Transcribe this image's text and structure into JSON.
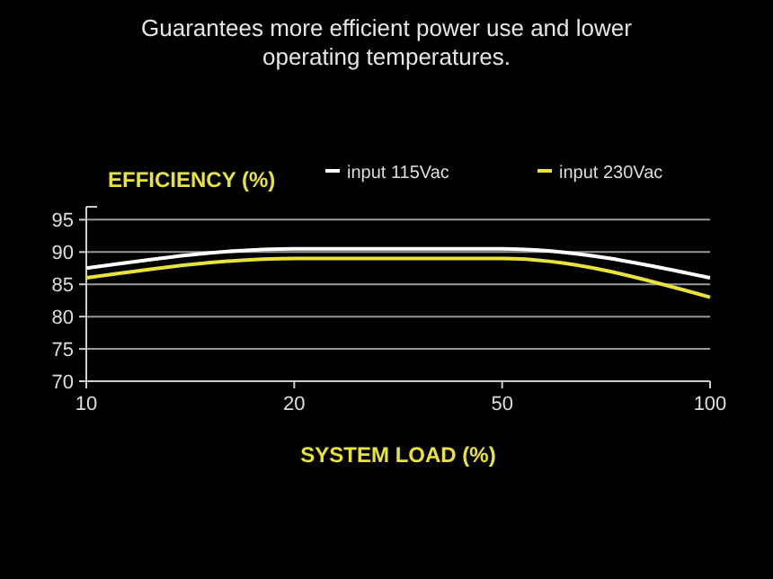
{
  "chart_data": {
    "type": "line",
    "title": "Guarantees more efficient power use and lower operating temperatures.",
    "ylabel": "EFFICIENCY (%)",
    "xlabel": "SYSTEM LOAD (%)",
    "categories": [
      "10",
      "20",
      "50",
      "100"
    ],
    "series": [
      {
        "name": "input 115Vac",
        "color": "#ffffff",
        "values": [
          87.5,
          90.5,
          90.5,
          86
        ]
      },
      {
        "name": "input 230Vac",
        "color": "#e8e23a",
        "values": [
          86,
          89,
          89,
          83
        ]
      }
    ],
    "ylim": [
      70,
      97
    ],
    "yticks": [
      70,
      75,
      80,
      85,
      90,
      95
    ],
    "grid": "y",
    "legend": "top right",
    "marker": "none",
    "line_style": "solid"
  }
}
